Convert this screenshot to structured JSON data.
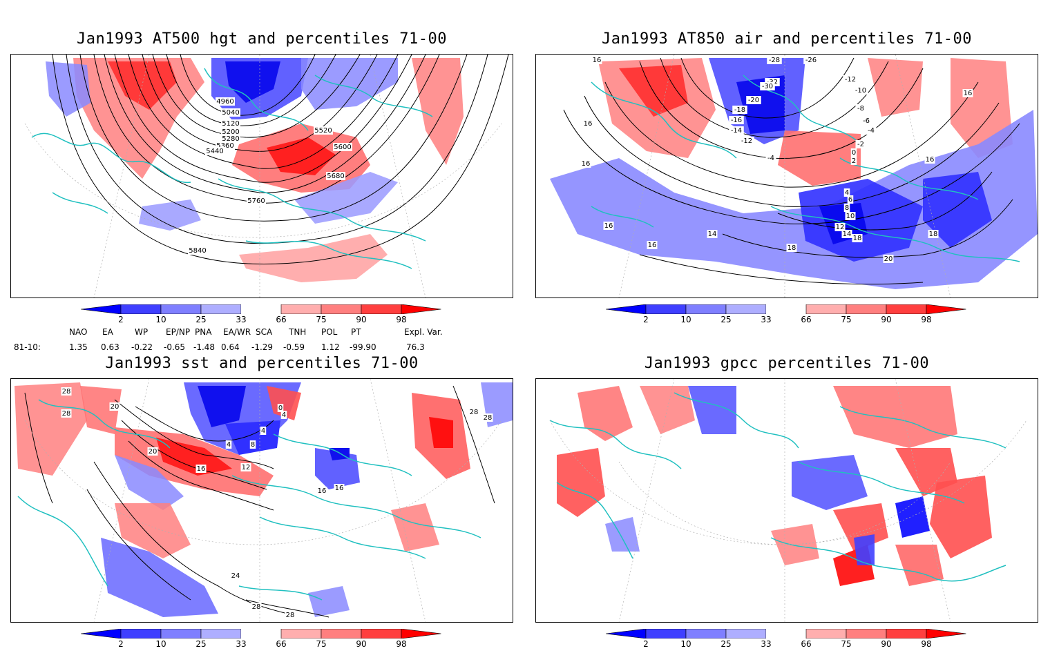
{
  "panels": [
    {
      "id": "hgt",
      "title": "Jan1993 AT500 hgt and percentiles 71-00",
      "contour_labels": [
        "4960",
        "5040",
        "5120",
        "5200",
        "5280",
        "5360",
        "5440",
        "5520",
        "5600",
        "5680",
        "5760",
        "5840"
      ]
    },
    {
      "id": "air",
      "title": "Jan1993 AT850 air and percentiles 71-00",
      "contour_labels": [
        "16",
        "16",
        "16",
        "16",
        "14",
        "16",
        "18",
        "-12",
        "-10",
        "-8",
        "-6",
        "-4",
        "-2",
        "0",
        "2",
        "-28",
        "-26",
        "-32",
        "-30",
        "-20",
        "-18",
        "-16",
        "-14",
        "-12",
        "-4",
        "4",
        "6",
        "8",
        "10",
        "12",
        "14",
        "18",
        "18",
        "20",
        "16",
        "16"
      ]
    },
    {
      "id": "sst",
      "title": "Jan1993 sst and percentiles 71-00",
      "contour_labels": [
        "28",
        "28",
        "20",
        "20",
        "16",
        "12",
        "4",
        "8",
        "4",
        "0",
        "4",
        "16",
        "16",
        "28",
        "28",
        "24",
        "28",
        "28"
      ]
    },
    {
      "id": "gpcc",
      "title": "Jan1993 gpcc percentiles 71-00",
      "contour_labels": []
    }
  ],
  "colorbar": {
    "ticks": [
      "2",
      "10",
      "25",
      "33",
      "66",
      "75",
      "90",
      "98"
    ],
    "colors": [
      "#0000ff",
      "#3f3fff",
      "#7f7fff",
      "#aeaeff",
      "#ffffff",
      "#ffaeae",
      "#ff7f7f",
      "#ff3f3f",
      "#ff0000"
    ]
  },
  "indices": {
    "headers": [
      "NAO",
      "EA",
      "WP",
      "EP/NP",
      "PNA",
      "EA/WR",
      "SCA",
      "TNH",
      "POL",
      "PT",
      "Expl. Var."
    ],
    "row_label": "81-10:",
    "values": [
      "1.35",
      "0.63",
      "-0.22",
      "-0.65",
      "-1.48",
      "0.64",
      "-1.29",
      "-0.59",
      "1.12",
      "-99.90",
      "76.3"
    ]
  },
  "colors": {
    "coast": "#20c0c0",
    "contour": "#000000",
    "grid": "#b0b0b0"
  }
}
